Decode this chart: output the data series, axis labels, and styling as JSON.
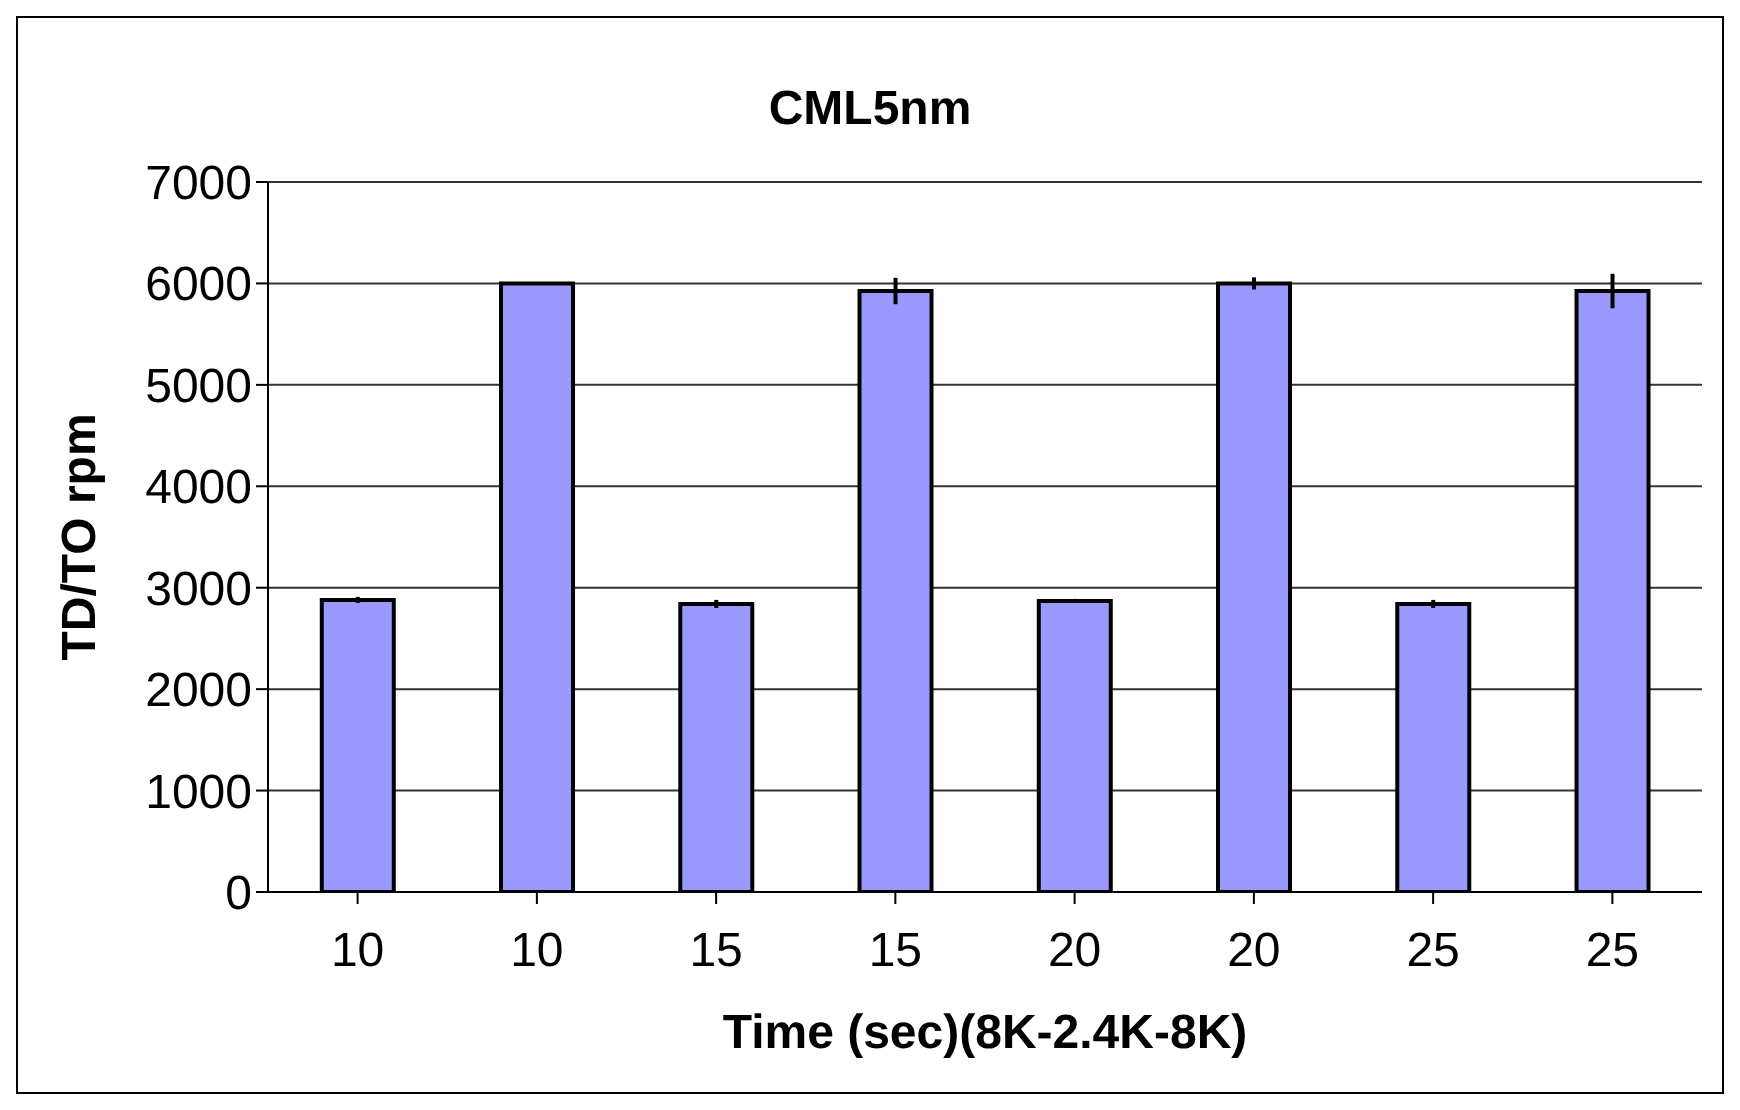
{
  "chart_data": {
    "type": "bar",
    "title": "CML5nm",
    "xlabel": "Time (sec)(8K-2.4K-8K)",
    "ylabel": "TD/TO rpm",
    "categories": [
      "10",
      "10",
      "15",
      "15",
      "20",
      "20",
      "25",
      "25"
    ],
    "values": [
      2880,
      6000,
      2840,
      5925,
      2870,
      6000,
      2840,
      5925
    ],
    "errors": [
      30,
      10,
      40,
      130,
      20,
      60,
      40,
      170
    ],
    "color": "#9999ff",
    "ylim": [
      0,
      7000
    ],
    "yticks": [
      0,
      1000,
      2000,
      3000,
      4000,
      5000,
      6000,
      7000
    ],
    "grid": "y",
    "legend": false
  }
}
